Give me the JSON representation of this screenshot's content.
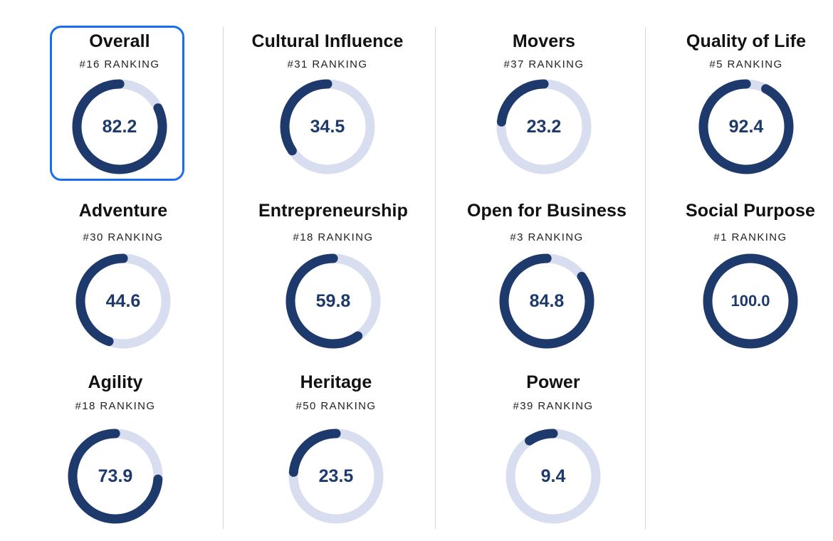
{
  "colors": {
    "ring_fill": "#1e3a6d",
    "ring_track": "#d8ddef",
    "selection": "#1a6cf0",
    "divider": "#d4d6da"
  },
  "selected_card": "overall",
  "scale_max": 100,
  "cards": [
    {
      "id": "overall",
      "title": "Overall",
      "ranking": "#16 RANKING",
      "score": "82.2",
      "score_fraction": 0.822
    },
    {
      "id": "cultural-influence",
      "title": "Cultural Influence",
      "ranking": "#31 RANKING",
      "score": "34.5",
      "score_fraction": 0.345
    },
    {
      "id": "movers",
      "title": "Movers",
      "ranking": "#37 RANKING",
      "score": "23.2",
      "score_fraction": 0.232
    },
    {
      "id": "quality-of-life",
      "title": "Quality of Life",
      "ranking": "#5 RANKING",
      "score": "92.4",
      "score_fraction": 0.924
    },
    {
      "id": "adventure",
      "title": "Adventure",
      "ranking": "#30 RANKING",
      "score": "44.6",
      "score_fraction": 0.446
    },
    {
      "id": "entrepreneurship",
      "title": "Entrepreneurship",
      "ranking": "#18 RANKING",
      "score": "59.8",
      "score_fraction": 0.598
    },
    {
      "id": "open-for-business",
      "title": "Open for Business",
      "ranking": "#3 RANKING",
      "score": "84.8",
      "score_fraction": 0.848
    },
    {
      "id": "social-purpose",
      "title": "Social Purpose",
      "ranking": "#1 RANKING",
      "score": "100.0",
      "score_fraction": 1.0
    },
    {
      "id": "agility",
      "title": "Agility",
      "ranking": "#18 RANKING",
      "score": "73.9",
      "score_fraction": 0.739
    },
    {
      "id": "heritage",
      "title": "Heritage",
      "ranking": "#50 RANKING",
      "score": "23.5",
      "score_fraction": 0.235
    },
    {
      "id": "power",
      "title": "Power",
      "ranking": "#39 RANKING",
      "score": "9.4",
      "score_fraction": 0.094
    }
  ]
}
